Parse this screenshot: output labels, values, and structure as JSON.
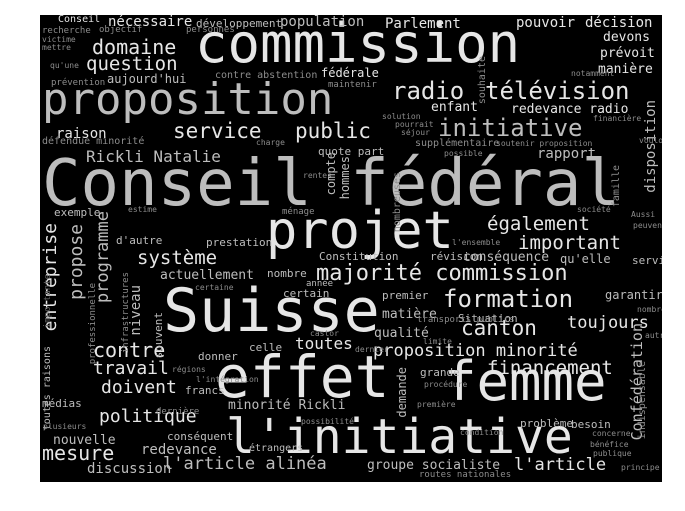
{
  "wordcloud": {
    "colors": {
      "background": "#000000",
      "light": "#e6e6e6",
      "mid": "#bdbdbd",
      "dim": "#8c8c8c",
      "faint": "#5e5e5e"
    },
    "words": [
      "commission",
      "Conseil fédéral",
      "proposition",
      "projet",
      "Suisse",
      "effet",
      "femme",
      "l'initiative",
      "radio",
      "télévision",
      "initiative",
      "domaine",
      "question",
      "service",
      "public",
      "majorité commission",
      "formation",
      "canton",
      "également",
      "important",
      "système",
      "contre",
      "travail",
      "doivent",
      "politique",
      "mesure",
      "proposition minorité",
      "financement",
      "toujours",
      "entreprise",
      "propose",
      "programme",
      "l'article alinéa",
      "l'article",
      "discussion",
      "redevance",
      "nouvelle",
      "groupe socialiste",
      "Confédération",
      "Rickli Natalie",
      "minorité Rickli",
      "aujourd'hui",
      "fédérale",
      "Parlement",
      "population",
      "nécessaire",
      "développement",
      "pouvoir",
      "décision",
      "prévoit",
      "manière",
      "devons",
      "raison",
      "enfant",
      "redevance radio",
      "rapport",
      "disposition",
      "quote part",
      "Constitution",
      "conséquence",
      "révision",
      "qu'elle",
      "service",
      "qualité",
      "matière",
      "premier",
      "garantir",
      "niveau",
      "souvent",
      "donner",
      "celle",
      "actuellement",
      "prestation",
      "d'autre",
      "exemple",
      "nombre",
      "année",
      "certain",
      "toutes",
      "dernière",
      "francs",
      "médias",
      "conséquent",
      "étrangers",
      "demande",
      "grande",
      "problème",
      "besoin",
      "Situation",
      "transports publics",
      "routes nationales",
      "Conseil",
      "recherche",
      "objectif",
      "personnes",
      "défendue minorité",
      "contre abstention",
      "maintenir",
      "souhaite",
      "notamment",
      "solution",
      "pourrait",
      "séjour",
      "financière",
      "supplémentaire",
      "possible",
      "soutenir proposition",
      "voulons",
      "famille",
      "rentes",
      "ménage",
      "compte",
      "hommes",
      "estime",
      "nombreuses",
      "l'ensemble",
      "Aussi",
      "peuvent",
      "société",
      "principe",
      "publique",
      "concerne",
      "bénéfice",
      "indispensable",
      "autre",
      "nombreux",
      "régions",
      "l'intégration",
      "dernier",
      "procédure",
      "condition",
      "possibilité",
      "importante",
      "toutes raisons",
      "plusieurs",
      "mettre",
      "victime",
      "prévention",
      "charge",
      "castor",
      "limite",
      "première",
      "infrastructures",
      "professionnelle",
      "certaine",
      "qu'une"
    ]
  }
}
